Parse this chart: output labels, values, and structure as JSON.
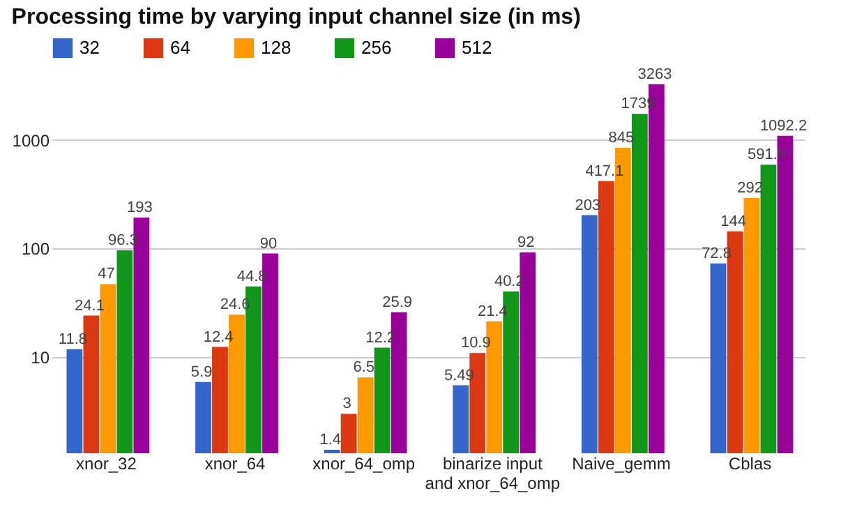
{
  "chart_data": {
    "type": "bar",
    "title": "Processing time by varying input channel size (in ms)",
    "categories": [
      "xnor_32",
      "xnor_64",
      "xnor_64_omp",
      "binarize input and xnor_64_omp",
      "Naive_gemm",
      "Cblas"
    ],
    "series": [
      {
        "name": "32",
        "color": "#3366cc",
        "values": [
          11.8,
          5.9,
          1.4,
          5.49,
          203,
          72.8
        ]
      },
      {
        "name": "64",
        "color": "#dc3912",
        "values": [
          24.1,
          12.4,
          3,
          10.9,
          417.1,
          144
        ]
      },
      {
        "name": "128",
        "color": "#ff9900",
        "values": [
          47,
          24.6,
          6.5,
          21.4,
          845,
          292
        ]
      },
      {
        "name": "256",
        "color": "#109618",
        "values": [
          96.3,
          44.8,
          12.2,
          40.2,
          1739,
          591.9
        ]
      },
      {
        "name": "512",
        "color": "#990099",
        "values": [
          193,
          90,
          25.9,
          92,
          3263,
          1092.2
        ]
      }
    ],
    "log": true,
    "ylim": [
      1.3,
      3300
    ],
    "yticks": [
      10,
      100,
      1000
    ],
    "grid": true,
    "legend": "top left",
    "data_labels": true
  }
}
